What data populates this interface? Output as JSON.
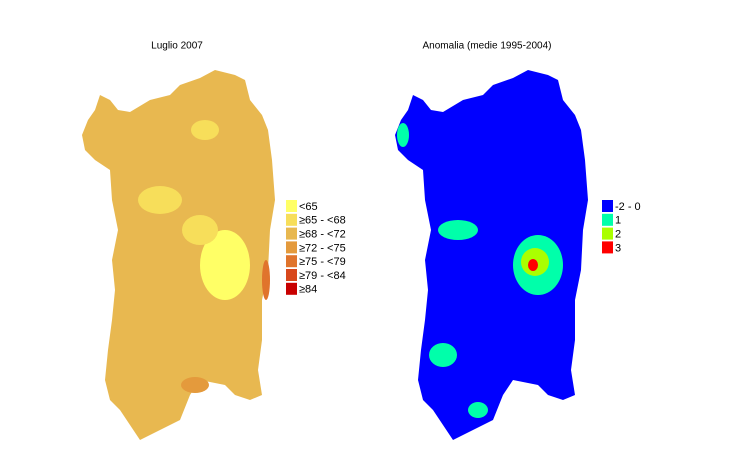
{
  "maps": [
    {
      "title": "Luglio 2007",
      "legend": [
        {
          "label": "<65",
          "color": "#ffff66"
        },
        {
          "label": "≥65 - <68",
          "color": "#f7de5a"
        },
        {
          "label": "≥68 - <72",
          "color": "#e8b850"
        },
        {
          "label": "≥72 - <75",
          "color": "#e49a3c"
        },
        {
          "label": "≥75 - <79",
          "color": "#e0742c"
        },
        {
          "label": "≥79 - <84",
          "color": "#d8481c"
        },
        {
          "label": "≥84",
          "color": "#c80000"
        }
      ]
    },
    {
      "title": "Anomalia (medie 1995-2004)",
      "legend": [
        {
          "label": "-2 - 0",
          "color": "#0000ff"
        },
        {
          "label": "1",
          "color": "#00ffaa"
        },
        {
          "label": "2",
          "color": "#aaff00"
        },
        {
          "label": "3",
          "color": "#ff0000"
        }
      ]
    }
  ]
}
